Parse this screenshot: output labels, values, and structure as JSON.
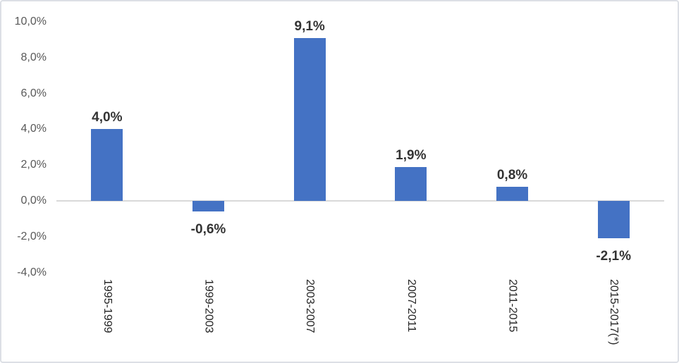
{
  "chart_data": {
    "type": "bar",
    "title": "",
    "xlabel": "",
    "ylabel": "",
    "categories": [
      "1995-1999",
      "1999-2003",
      "2003-2007",
      "2007-2011",
      "2011-2015",
      "2015-2017(*)"
    ],
    "values": [
      4.0,
      -0.6,
      9.1,
      1.9,
      0.8,
      -2.1
    ],
    "value_labels": [
      "4,0%",
      "-0,6%",
      "9,1%",
      "1,9%",
      "0,8%",
      "-2,1%"
    ],
    "ylim": [
      -4,
      10
    ],
    "y_ticks": [
      {
        "value": 10,
        "label": "10,0%"
      },
      {
        "value": 8,
        "label": "8,0%"
      },
      {
        "value": 6,
        "label": "6,0%"
      },
      {
        "value": 4,
        "label": "4,0%"
      },
      {
        "value": 2,
        "label": "2,0%"
      },
      {
        "value": 0,
        "label": "0,0%"
      },
      {
        "value": -2,
        "label": "-2,0%"
      },
      {
        "value": -4,
        "label": "-4,0%"
      }
    ],
    "grid": false,
    "legend": false,
    "bar_color": "#4472C4",
    "axis_line_color": "#D9D9D9",
    "y_tick_label_color": "#595959",
    "category_label_color": "#262626",
    "value_label_color": "#333333"
  }
}
